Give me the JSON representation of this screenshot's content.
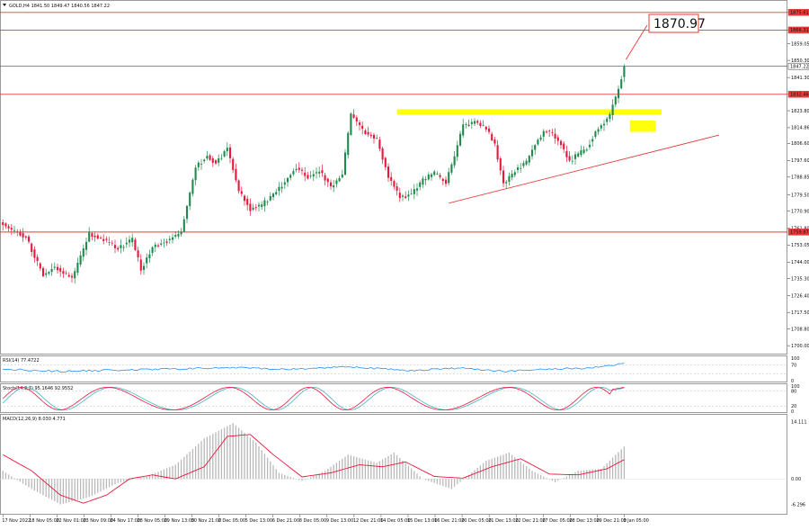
{
  "header": {
    "symbol_text": "GOLD,H4  1841.50 1849.47 1840.56 1847.22"
  },
  "colors": {
    "bull": "#1f8a4c",
    "bear": "#e8173c",
    "level_line": "#e83a3a",
    "highlight": "#ffff00",
    "rsi_line": "#1e90ff",
    "stoch_main": "#e8173c",
    "stoch_signal": "#4ab0c8",
    "macd_signal": "#e8173c",
    "macd_hist": "#b8b8b8"
  },
  "chart_data": [
    {
      "type": "candlestick",
      "title": "GOLD,H4",
      "ylim": [
        1695.8,
        1881.2
      ],
      "y_ticks": [
        "1875.61",
        "1866.31",
        "1859.05",
        "1850.30",
        "1841.30",
        "1832.46",
        "1823.80",
        "1814.86",
        "1806.60",
        "1797.60",
        "1788.85",
        "1779.50",
        "1770.90",
        "1761.80",
        "1753.05",
        "1744.00",
        "1735.30",
        "1726.40",
        "1717.50",
        "1708.80",
        "1700.00"
      ],
      "price_labels": [
        {
          "value": 1875.61,
          "text": "1875.61",
          "style": "level"
        },
        {
          "value": 1866.31,
          "text": "1866.31",
          "style": "level"
        },
        {
          "value": 1847.22,
          "text": "1847.22",
          "style": "current"
        },
        {
          "value": 1832.46,
          "text": "1832.46",
          "style": "level"
        },
        {
          "value": 1759.87,
          "text": "1759.87",
          "style": "level"
        }
      ],
      "annotation": {
        "text": "1870.97",
        "target_value": 1850.8
      },
      "x_labels": [
        "17 Nov 2022",
        "18 Nov 05:00",
        "22 Nov 01:00",
        "23 Nov 09:00",
        "24 Nov 17:00",
        "28 Nov 05:00",
        "29 Nov 13:00",
        "30 Nov 21:00",
        "2 Dec 05:00",
        "5 Dec 13:00",
        "6 Dec 21:00",
        "8 Dec 05:00",
        "9 Dec 13:00",
        "12 Dec 21:00",
        "14 Dec 05:00",
        "15 Dec 13:00",
        "16 Dec 21:00",
        "20 Dec 05:00",
        "21 Dec 13:00",
        "22 Dec 21:00",
        "27 Dec 05:00",
        "28 Dec 13:00",
        "29 Dec 21:00",
        "3 Jan 05:00"
      ],
      "anchors": [
        {
          "i": 0,
          "p": 1764
        },
        {
          "i": 8,
          "p": 1757
        },
        {
          "i": 14,
          "p": 1737
        },
        {
          "i": 18,
          "p": 1742
        },
        {
          "i": 24,
          "p": 1735
        },
        {
          "i": 30,
          "p": 1759
        },
        {
          "i": 35,
          "p": 1756
        },
        {
          "i": 40,
          "p": 1751
        },
        {
          "i": 45,
          "p": 1756
        },
        {
          "i": 48,
          "p": 1740
        },
        {
          "i": 52,
          "p": 1752
        },
        {
          "i": 57,
          "p": 1755
        },
        {
          "i": 62,
          "p": 1760
        },
        {
          "i": 67,
          "p": 1794
        },
        {
          "i": 71,
          "p": 1800
        },
        {
          "i": 74,
          "p": 1796
        },
        {
          "i": 78,
          "p": 1804
        },
        {
          "i": 82,
          "p": 1782
        },
        {
          "i": 86,
          "p": 1772
        },
        {
          "i": 90,
          "p": 1774
        },
        {
          "i": 94,
          "p": 1780
        },
        {
          "i": 98,
          "p": 1786
        },
        {
          "i": 102,
          "p": 1794
        },
        {
          "i": 106,
          "p": 1789
        },
        {
          "i": 110,
          "p": 1792
        },
        {
          "i": 114,
          "p": 1784
        },
        {
          "i": 118,
          "p": 1790
        },
        {
          "i": 121,
          "p": 1822
        },
        {
          "i": 126,
          "p": 1812
        },
        {
          "i": 130,
          "p": 1809
        },
        {
          "i": 134,
          "p": 1789
        },
        {
          "i": 138,
          "p": 1778
        },
        {
          "i": 142,
          "p": 1780
        },
        {
          "i": 146,
          "p": 1787
        },
        {
          "i": 150,
          "p": 1791
        },
        {
          "i": 154,
          "p": 1786
        },
        {
          "i": 157,
          "p": 1800
        },
        {
          "i": 160,
          "p": 1816
        },
        {
          "i": 164,
          "p": 1818
        },
        {
          "i": 168,
          "p": 1815
        },
        {
          "i": 171,
          "p": 1806
        },
        {
          "i": 174,
          "p": 1785
        },
        {
          "i": 178,
          "p": 1792
        },
        {
          "i": 182,
          "p": 1797
        },
        {
          "i": 185,
          "p": 1806
        },
        {
          "i": 188,
          "p": 1813
        },
        {
          "i": 191,
          "p": 1812
        },
        {
          "i": 194,
          "p": 1806
        },
        {
          "i": 197,
          "p": 1797
        },
        {
          "i": 200,
          "p": 1801
        },
        {
          "i": 203,
          "p": 1804
        },
        {
          "i": 206,
          "p": 1813
        },
        {
          "i": 209,
          "p": 1818
        },
        {
          "i": 211,
          "p": 1822
        },
        {
          "i": 213,
          "p": 1831
        },
        {
          "i": 215,
          "p": 1841
        },
        {
          "i": 216,
          "p": 1847.22
        }
      ],
      "trend_lines": [
        {
          "name": "support-trendline",
          "x": [
            155,
            249
          ],
          "y": [
            1775.1,
            1811.0
          ]
        }
      ],
      "levels": [
        1875.61,
        1866.31,
        1832.46,
        1759.87
      ],
      "resistance_zone": {
        "x": [
          137,
          229
        ],
        "y": [
          1821.8,
          1824.6
        ]
      },
      "small_zone": {
        "x": [
          218,
          227
        ],
        "y": [
          1812.7,
          1818.6
        ]
      }
    },
    {
      "type": "line",
      "title": "RSI(14) 77.4722",
      "ylim": [
        0,
        100
      ],
      "levels": [
        70,
        30
      ],
      "y_ticks": [
        "100",
        "70",
        "0"
      ],
      "anchors": [
        {
          "i": 0,
          "p": 52
        },
        {
          "i": 20,
          "p": 41
        },
        {
          "i": 40,
          "p": 47
        },
        {
          "i": 60,
          "p": 52
        },
        {
          "i": 80,
          "p": 58
        },
        {
          "i": 100,
          "p": 50
        },
        {
          "i": 120,
          "p": 63
        },
        {
          "i": 140,
          "p": 45
        },
        {
          "i": 160,
          "p": 56
        },
        {
          "i": 175,
          "p": 41
        },
        {
          "i": 190,
          "p": 51
        },
        {
          "i": 205,
          "p": 57
        },
        {
          "i": 216,
          "p": 77.47
        }
      ]
    },
    {
      "type": "line",
      "title": "Stoch(14,3,3) 95.1646 92.9552",
      "ylim": [
        0,
        100
      ],
      "levels": [
        80,
        20
      ],
      "y_ticks": [
        "100",
        "80",
        "20",
        "0"
      ],
      "series": [
        {
          "name": "main",
          "values": [
            95.16
          ]
        },
        {
          "name": "signal",
          "values": [
            92.96
          ]
        }
      ]
    },
    {
      "type": "line",
      "title": "MACD(12,26,9) 8.030 4.771",
      "ylim": [
        -8.4,
        15.4
      ],
      "y_ticks": [
        "14.111",
        "0.00",
        "-6.296"
      ],
      "anchors": [
        {
          "i": 0,
          "p": 2
        },
        {
          "i": 10,
          "p": -2.5
        },
        {
          "i": 20,
          "p": -6.3
        },
        {
          "i": 30,
          "p": -4.5
        },
        {
          "i": 40,
          "p": -1
        },
        {
          "i": 50,
          "p": 0.6
        },
        {
          "i": 60,
          "p": 3.5
        },
        {
          "i": 70,
          "p": 10
        },
        {
          "i": 80,
          "p": 13.8
        },
        {
          "i": 88,
          "p": 9
        },
        {
          "i": 96,
          "p": 1.5
        },
        {
          "i": 104,
          "p": -0.5
        },
        {
          "i": 112,
          "p": 2
        },
        {
          "i": 120,
          "p": 6
        },
        {
          "i": 130,
          "p": 4
        },
        {
          "i": 136,
          "p": 6.5
        },
        {
          "i": 146,
          "p": 0
        },
        {
          "i": 156,
          "p": -2.5
        },
        {
          "i": 168,
          "p": 4.5
        },
        {
          "i": 176,
          "p": 6.5
        },
        {
          "i": 184,
          "p": 2
        },
        {
          "i": 192,
          "p": -0.8
        },
        {
          "i": 200,
          "p": 2
        },
        {
          "i": 208,
          "p": 2.5
        },
        {
          "i": 216,
          "p": 8.03
        }
      ],
      "signal_anchors": [
        {
          "i": 0,
          "p": 6
        },
        {
          "i": 10,
          "p": 2
        },
        {
          "i": 20,
          "p": -4
        },
        {
          "i": 28,
          "p": -6
        },
        {
          "i": 36,
          "p": -4
        },
        {
          "i": 44,
          "p": 0
        },
        {
          "i": 52,
          "p": 1
        },
        {
          "i": 60,
          "p": 0
        },
        {
          "i": 70,
          "p": 3
        },
        {
          "i": 78,
          "p": 10.5
        },
        {
          "i": 86,
          "p": 11
        },
        {
          "i": 94,
          "p": 6
        },
        {
          "i": 104,
          "p": 0.5
        },
        {
          "i": 114,
          "p": 1.5
        },
        {
          "i": 124,
          "p": 3.5
        },
        {
          "i": 132,
          "p": 3
        },
        {
          "i": 140,
          "p": 4.2
        },
        {
          "i": 150,
          "p": 0.6
        },
        {
          "i": 160,
          "p": 0.2
        },
        {
          "i": 170,
          "p": 3
        },
        {
          "i": 180,
          "p": 5
        },
        {
          "i": 190,
          "p": 1.2
        },
        {
          "i": 200,
          "p": 1
        },
        {
          "i": 210,
          "p": 2.5
        },
        {
          "i": 216,
          "p": 4.77
        }
      ]
    }
  ]
}
